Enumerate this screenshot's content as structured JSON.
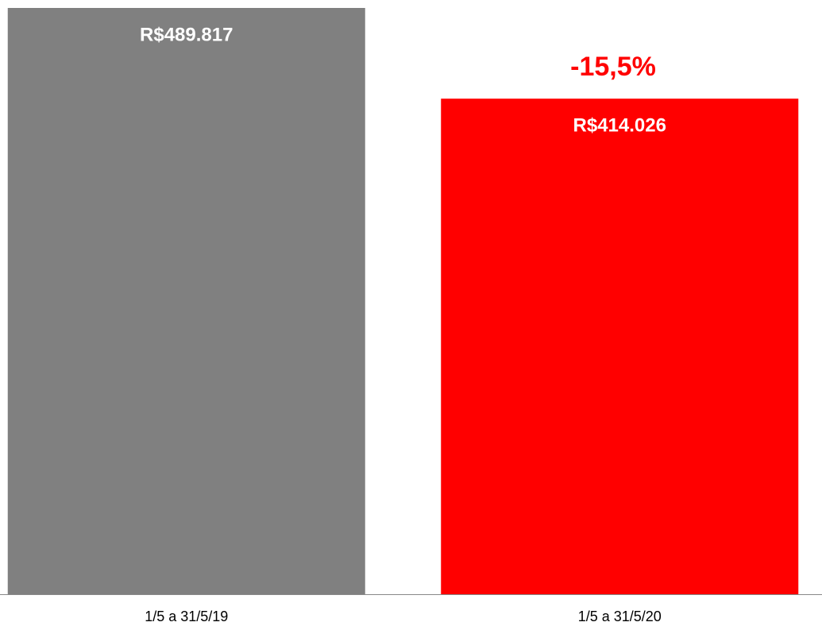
{
  "chart_data": {
    "type": "bar",
    "categories": [
      "1/5 a 31/5/19",
      "1/5 a 31/5/20"
    ],
    "values": [
      489817,
      414026
    ],
    "value_labels": [
      "R$489.817",
      "R$414.026"
    ],
    "colors": [
      "#808080",
      "#ff0000"
    ],
    "annotation": "-15,5%"
  }
}
